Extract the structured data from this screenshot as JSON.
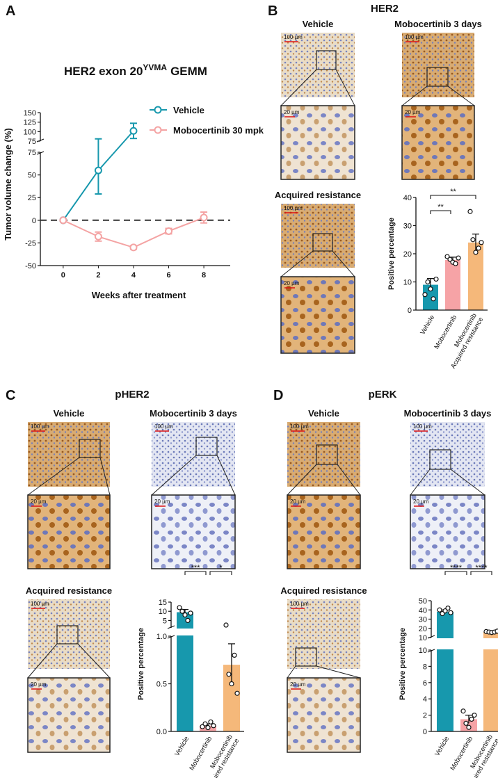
{
  "figure": {
    "panels": [
      {
        "label": "A"
      },
      {
        "label": "B",
        "title": "HER2",
        "images": [
          "Vehicle",
          "Mobocertinib 3 days",
          "Acquired resistance"
        ]
      },
      {
        "label": "C",
        "title": "pHER2",
        "images": [
          "Vehicle",
          "Mobocertinib 3 days",
          "Acquired resistance"
        ]
      },
      {
        "label": "D",
        "title": "pERK",
        "images": [
          "Vehicle",
          "Mobocertinib 3 days",
          "Acquired resistance"
        ]
      }
    ],
    "scale_bars": [
      "100 µm",
      "20 µm"
    ]
  },
  "chart_data": [
    {
      "type": "line",
      "title": "HER2 exon 20",
      "title_superscript": "YVMA",
      "title_suffix": "GEMM",
      "xlabel": "Weeks after treatment",
      "ylabel": "Tumor volume change (%)",
      "xlim": [
        -1.3,
        9.5
      ],
      "xticks": [
        0,
        2,
        4,
        6,
        8
      ],
      "segments": [
        {
          "ylim": [
            -50,
            75
          ],
          "yticks": [
            -50,
            -25,
            0,
            25,
            50,
            75
          ]
        },
        {
          "ylim": [
            75,
            150
          ],
          "yticks": [
            75,
            100,
            125,
            150
          ]
        }
      ],
      "hline": 0,
      "series": [
        {
          "name": "Vehicle",
          "color": "#1798ad",
          "x": [
            0,
            2,
            4
          ],
          "values": [
            0,
            55,
            102
          ],
          "errors": [
            0,
            26,
            20
          ]
        },
        {
          "name": "Mobocertinib 30 mpk",
          "color": "#f4a3a3",
          "x": [
            0,
            2,
            4,
            6,
            8
          ],
          "values": [
            0,
            -18,
            -30,
            -12,
            3
          ],
          "errors": [
            0,
            5,
            2,
            3,
            6
          ]
        }
      ]
    },
    {
      "type": "bar",
      "ylabel": "Positive percentage",
      "categories": [
        "Vehicle",
        "Mobocertinib",
        [
          "Mobocertinib",
          "Acquired resistance"
        ]
      ],
      "colors": [
        "#1798ad",
        "#f6a3a6",
        "#f5b87a"
      ],
      "segments": [
        {
          "ylim": [
            0,
            40
          ],
          "yticks": [
            0,
            10,
            20,
            30,
            40
          ]
        }
      ],
      "values": [
        9,
        17.8,
        24
      ],
      "errors": [
        2.2,
        1,
        3
      ],
      "points": [
        [
          5.5,
          10,
          7.5,
          4,
          11
        ],
        [
          19,
          18,
          17,
          16.5,
          18.5
        ],
        [
          35,
          25,
          20.5,
          22,
          24
        ]
      ],
      "significance": [
        {
          "label": "**",
          "from": 0,
          "to": 1
        },
        {
          "label": "**",
          "from": 0,
          "to": 2
        }
      ]
    },
    {
      "type": "bar",
      "ylabel": "Positive percentage",
      "categories": [
        "Vehicle",
        "Mobocertinib",
        [
          "Mobocertinib",
          "Acquired resistance"
        ]
      ],
      "colors": [
        "#1798ad",
        "#f6a3a6",
        "#f5b87a"
      ],
      "segments": [
        {
          "ylim": [
            0,
            1
          ],
          "yticks": [
            {
              "value": 0,
              "label": "0.0"
            },
            {
              "value": 0.5,
              "label": "0.5"
            },
            {
              "value": 1,
              "label": "1.0"
            }
          ]
        },
        {
          "ylim": [
            1,
            15
          ],
          "yticks": [
            5,
            10,
            15
          ]
        }
      ],
      "values": [
        9.5,
        0.06,
        0.7
      ],
      "errors": [
        1.5,
        0.02,
        0.22
      ],
      "points": [
        [
          12,
          10,
          8,
          5,
          9
        ],
        [
          0.05,
          0.08,
          0.04,
          0.1,
          0.06
        ],
        [
          2.5,
          0.6,
          0.5,
          0.8,
          0.4
        ]
      ],
      "significance": [
        {
          "label": "***",
          "from": 0,
          "to": 1
        },
        {
          "label": "*",
          "from": 1,
          "to": 2
        }
      ]
    },
    {
      "type": "bar",
      "ylabel": "Positive percentage",
      "categories": [
        "Vehicle",
        "Mobocertinib",
        [
          "Mobocertinib",
          "Acquired resistance"
        ]
      ],
      "colors": [
        "#1798ad",
        "#f6a3a6",
        "#f5b87a"
      ],
      "segments": [
        {
          "ylim": [
            0,
            10
          ],
          "yticks": [
            0,
            2,
            4,
            6,
            8,
            10
          ]
        },
        {
          "ylim": [
            10,
            50
          ],
          "yticks": [
            10,
            20,
            30,
            40,
            50
          ]
        }
      ],
      "values": [
        38,
        1.5,
        16
      ],
      "errors": [
        2,
        0.5,
        0.5
      ],
      "points": [
        [
          40,
          36,
          39,
          42,
          37
        ],
        [
          2.5,
          1,
          0.5,
          1.5,
          2
        ],
        [
          16.5,
          16,
          15.5,
          16,
          17
        ]
      ],
      "significance": [
        {
          "label": "****",
          "from": 0,
          "to": 1
        },
        {
          "label": "****",
          "from": 1,
          "to": 2
        }
      ]
    }
  ]
}
